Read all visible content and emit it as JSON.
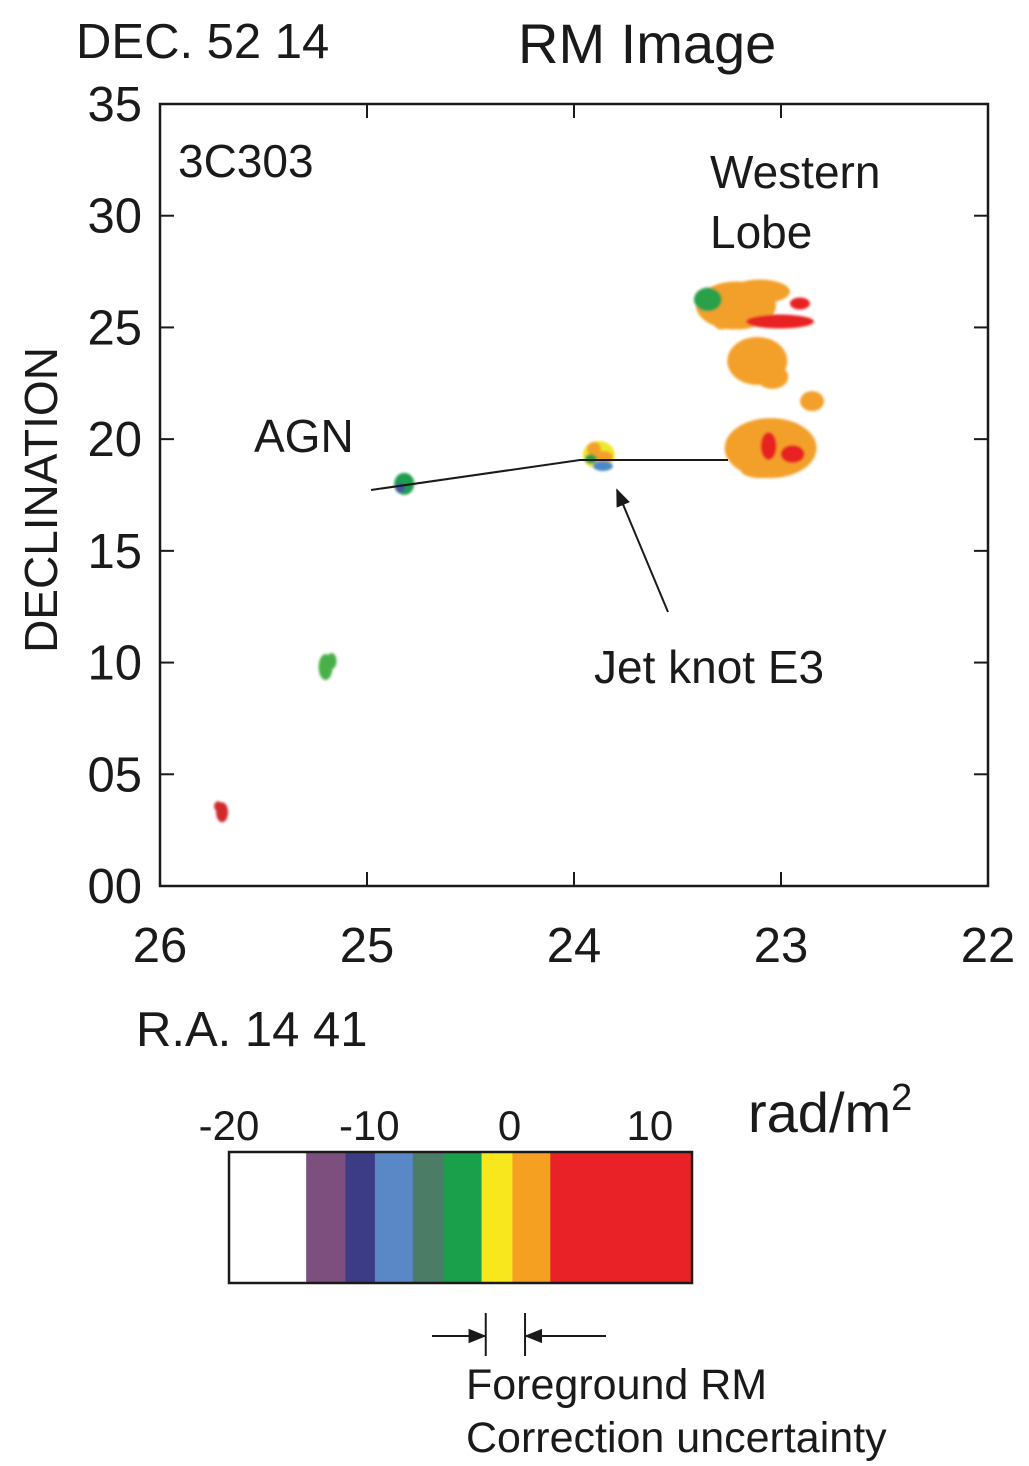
{
  "chart_data": {
    "type": "heatmap",
    "title": "RM Image",
    "dec_label": "DEC. 52  14",
    "ra_label": "R.A. 14  41",
    "ylabel": "DECLINATION",
    "source_label": "3C303",
    "x_ticks": [
      "26",
      "25",
      "24",
      "23",
      "22"
    ],
    "x_tick_values": [
      26,
      25,
      24,
      23,
      22
    ],
    "y_ticks": [
      "00",
      "05",
      "10",
      "15",
      "20",
      "25",
      "30",
      "35"
    ],
    "y_tick_values": [
      0,
      5,
      10,
      15,
      20,
      25,
      30,
      35
    ],
    "xlim": [
      26,
      22
    ],
    "ylim": [
      0,
      35
    ],
    "grid": false,
    "annotations": {
      "agn": "AGN",
      "western_lobe_line1": "Western",
      "western_lobe_line2": "Lobe",
      "jet_knot": "Jet knot E3"
    },
    "regions": [
      {
        "name": "AGN",
        "ra": 24.82,
        "dec": 18.0,
        "colors": [
          "#1b9e4b",
          "#3e5a9e"
        ]
      },
      {
        "name": "Jet knot E3",
        "ra": 23.88,
        "dec": 19.2,
        "colors": [
          "#f0e62a",
          "#f3a02a",
          "#2aa04a",
          "#4a8ac8"
        ]
      },
      {
        "name": "Western Lobe upper",
        "ra": 23.15,
        "dec": 25.8,
        "colors": [
          "#f3a02a",
          "#e82222",
          "#2aa04a"
        ]
      },
      {
        "name": "Western Lobe middle",
        "ra": 23.1,
        "dec": 23.5,
        "colors": [
          "#f3a02a"
        ]
      },
      {
        "name": "Western Lobe lower",
        "ra": 23.05,
        "dec": 19.6,
        "colors": [
          "#f3a02a",
          "#e82222"
        ]
      },
      {
        "name": "Western Lobe small",
        "ra": 22.85,
        "dec": 21.7,
        "colors": [
          "#f3a02a"
        ]
      },
      {
        "name": "South green",
        "ra": 25.2,
        "dec": 9.8,
        "colors": [
          "#4ab04a"
        ]
      },
      {
        "name": "South red",
        "ra": 25.7,
        "dec": 3.3,
        "colors": [
          "#d02a2a"
        ]
      }
    ],
    "colorbar": {
      "unit": "rad/m",
      "unit_exponent": "2",
      "tick_labels": [
        "-20",
        "-10",
        "0",
        "10"
      ],
      "tick_values": [
        -20,
        -10,
        0,
        10
      ],
      "range": [
        -20,
        13
      ],
      "segments": [
        {
          "from": -20,
          "to": -14.5,
          "color": "#ffffff"
        },
        {
          "from": -14.5,
          "to": -11.7,
          "color": "#7c4f7e"
        },
        {
          "from": -11.7,
          "to": -9.6,
          "color": "#3c3c86"
        },
        {
          "from": -9.6,
          "to": -6.9,
          "color": "#5a87c5"
        },
        {
          "from": -6.9,
          "to": -4.7,
          "color": "#4a7c66"
        },
        {
          "from": -4.7,
          "to": -2.0,
          "color": "#1aa04a"
        },
        {
          "from": -2.0,
          "to": 0.2,
          "color": "#f7e81e"
        },
        {
          "from": 0.2,
          "to": 2.9,
          "color": "#f5a020"
        },
        {
          "from": 2.9,
          "to": 13.0,
          "color": "#e82227"
        }
      ]
    },
    "uncertainty": {
      "from": -1.7,
      "to": 1.1,
      "line1": "Foreground RM",
      "line2": "Correction uncertainty"
    }
  }
}
